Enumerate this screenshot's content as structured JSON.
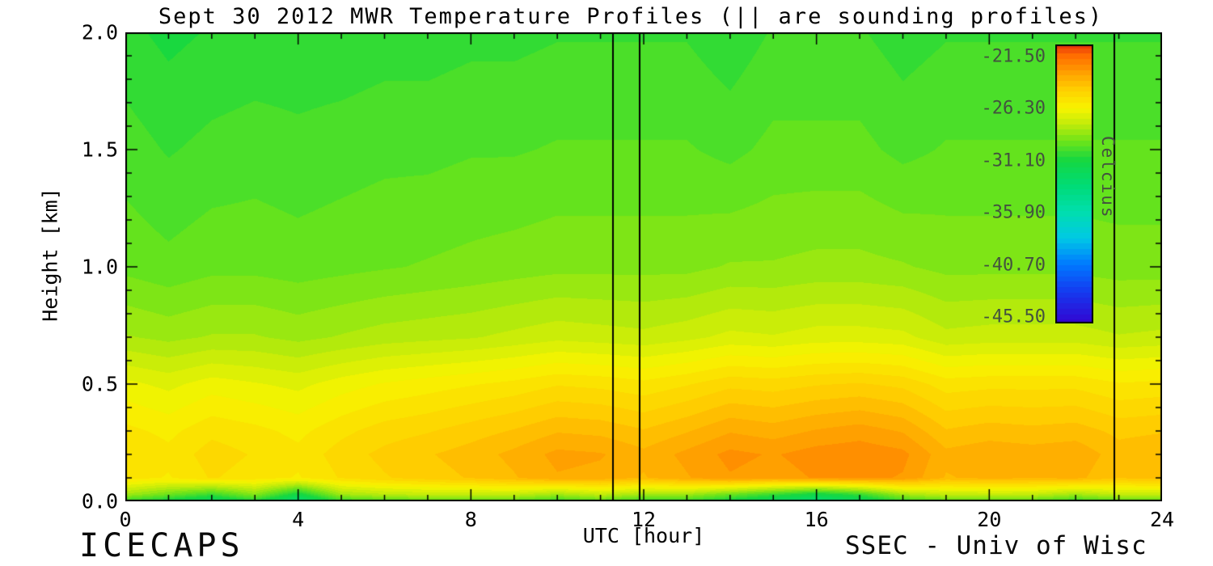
{
  "annotations": {
    "bottom_left": "ICECAPS",
    "bottom_right": "SSEC - Univ of Wisc"
  },
  "chart_data": {
    "type": "heatmap",
    "title": "Sept 30 2012 MWR Temperature Profiles (|| are sounding profiles)",
    "xlabel": "UTC [hour]",
    "ylabel": "Height [km]",
    "xlim": [
      0,
      24
    ],
    "ylim": [
      0,
      2
    ],
    "xticks": [
      "0",
      "4",
      "8",
      "12",
      "16",
      "20",
      "24"
    ],
    "xtick_values": [
      0,
      4,
      8,
      12,
      16,
      20,
      24
    ],
    "x_minor_step": 1,
    "yticks": [
      "0.0",
      "0.5",
      "1.0",
      "1.5",
      "2.0"
    ],
    "ytick_values": [
      0,
      0.5,
      1,
      1.5,
      2
    ],
    "y_minor_step": 0.1,
    "grid_lines": "off",
    "legend": "none",
    "colorbar": {
      "label": "Celcius",
      "position": "inside-right",
      "tick_labels": [
        "-21.50",
        "-26.30",
        "-31.10",
        "-35.90",
        "-40.70",
        "-45.50"
      ],
      "tick_values": [
        -21.5,
        -26.3,
        -31.1,
        -35.9,
        -40.7,
        -45.5
      ],
      "top_value": -20.4,
      "bottom_value": -46.1
    },
    "sounding_profiles_utc": [
      11.27,
      11.89,
      22.88
    ],
    "band_step_c": 0.5,
    "colormap_stops": [
      [
        -46.5,
        55,
        0,
        200
      ],
      [
        -45.5,
        45,
        15,
        215
      ],
      [
        -43.1,
        20,
        60,
        240
      ],
      [
        -40.7,
        0,
        120,
        255
      ],
      [
        -38.3,
        0,
        200,
        230
      ],
      [
        -35.9,
        0,
        222,
        175
      ],
      [
        -33.5,
        0,
        220,
        120
      ],
      [
        -31.1,
        20,
        215,
        65
      ],
      [
        -29.3,
        110,
        228,
        25
      ],
      [
        -27.8,
        190,
        235,
        10
      ],
      [
        -26.3,
        248,
        244,
        0
      ],
      [
        -24.5,
        255,
        205,
        0
      ],
      [
        -23.0,
        255,
        160,
        0
      ],
      [
        -21.5,
        255,
        110,
        0
      ],
      [
        -20.5,
        235,
        60,
        10
      ]
    ],
    "grid": {
      "hours": [
        0,
        1,
        2,
        3,
        4,
        5,
        6,
        7,
        8,
        9,
        10,
        11,
        12,
        13,
        14,
        15,
        16,
        17,
        18,
        19,
        20,
        21,
        22,
        23,
        24
      ],
      "heights_km": [
        0.0,
        0.03,
        0.1,
        0.2,
        0.3,
        0.5,
        0.7,
        1.0,
        1.5,
        2.0
      ],
      "temps_c": [
        [
          -30.5,
          -31.5,
          -32.5,
          -31.0,
          -33.5,
          -30.5,
          -30.0,
          -29.8,
          -29.8,
          -29.8,
          -30.5,
          -29.8,
          -30.5,
          -30.5,
          -31.5,
          -32.5,
          -33.5,
          -32.5,
          -30.5,
          -29.8,
          -29.8,
          -29.8,
          -30.5,
          -29.8,
          -29.8
        ],
        [
          -28.3,
          -29.3,
          -30.3,
          -28.8,
          -31.3,
          -28.3,
          -27.8,
          -27.6,
          -27.6,
          -27.6,
          -28.3,
          -27.6,
          -28.3,
          -28.3,
          -29.3,
          -30.3,
          -31.3,
          -30.3,
          -28.3,
          -27.6,
          -27.6,
          -27.6,
          -28.3,
          -27.6,
          -27.6
        ],
        [
          -25.5,
          -25.8,
          -25.2,
          -25.5,
          -25.8,
          -25.2,
          -24.8,
          -24.5,
          -24.2,
          -23.8,
          -23.3,
          -23.4,
          -23.8,
          -23.3,
          -22.8,
          -23.0,
          -22.7,
          -22.6,
          -22.8,
          -23.8,
          -23.6,
          -23.7,
          -23.6,
          -24.2,
          -24.0
        ],
        [
          -25.2,
          -25.6,
          -25.0,
          -25.3,
          -25.6,
          -25.0,
          -24.6,
          -24.3,
          -24.0,
          -23.6,
          -23.1,
          -23.2,
          -23.6,
          -23.1,
          -22.6,
          -22.8,
          -22.5,
          -22.4,
          -22.6,
          -23.6,
          -23.4,
          -23.5,
          -23.4,
          -24.0,
          -23.8
        ],
        [
          -25.6,
          -25.9,
          -25.4,
          -25.6,
          -25.9,
          -25.4,
          -25.0,
          -24.8,
          -24.5,
          -24.2,
          -23.8,
          -23.9,
          -24.2,
          -23.8,
          -23.3,
          -23.5,
          -23.2,
          -23.0,
          -23.3,
          -24.2,
          -24.0,
          -24.1,
          -24.0,
          -24.4,
          -24.3
        ],
        [
          -26.6,
          -26.9,
          -26.5,
          -26.7,
          -26.9,
          -26.5,
          -26.2,
          -26.0,
          -25.8,
          -25.6,
          -25.3,
          -25.4,
          -25.6,
          -25.3,
          -24.9,
          -25.0,
          -24.8,
          -24.7,
          -24.9,
          -25.5,
          -25.4,
          -25.4,
          -25.4,
          -25.7,
          -25.6
        ],
        [
          -28.2,
          -28.4,
          -28.2,
          -28.2,
          -28.4,
          -28.2,
          -28.0,
          -27.9,
          -27.8,
          -27.6,
          -27.4,
          -27.5,
          -27.6,
          -27.4,
          -27.1,
          -27.2,
          -27.0,
          -27.0,
          -27.1,
          -27.6,
          -27.5,
          -27.5,
          -27.5,
          -27.7,
          -27.6
        ],
        [
          -29.4,
          -29.6,
          -29.4,
          -29.4,
          -29.5,
          -29.4,
          -29.3,
          -29.2,
          -29.1,
          -29.0,
          -28.9,
          -28.9,
          -28.9,
          -28.9,
          -28.7,
          -28.7,
          -28.6,
          -28.6,
          -28.7,
          -28.9,
          -28.9,
          -28.9,
          -28.9,
          -29.0,
          -29.0
        ],
        [
          -30.0,
          -30.3,
          -30.1,
          -30.0,
          -30.1,
          -30.0,
          -29.9,
          -29.9,
          -29.8,
          -29.8,
          -29.7,
          -29.7,
          -29.7,
          -29.7,
          -29.9,
          -29.6,
          -29.6,
          -29.6,
          -29.9,
          -29.7,
          -29.7,
          -29.7,
          -29.7,
          -29.7,
          -29.7
        ],
        [
          -30.6,
          -30.9,
          -30.7,
          -30.6,
          -30.6,
          -30.6,
          -30.5,
          -30.5,
          -30.4,
          -30.4,
          -30.3,
          -30.3,
          -30.3,
          -30.3,
          -30.6,
          -30.2,
          -30.2,
          -30.2,
          -30.5,
          -30.3,
          -30.3,
          -30.3,
          -30.3,
          -30.3,
          -30.3
        ]
      ]
    }
  }
}
